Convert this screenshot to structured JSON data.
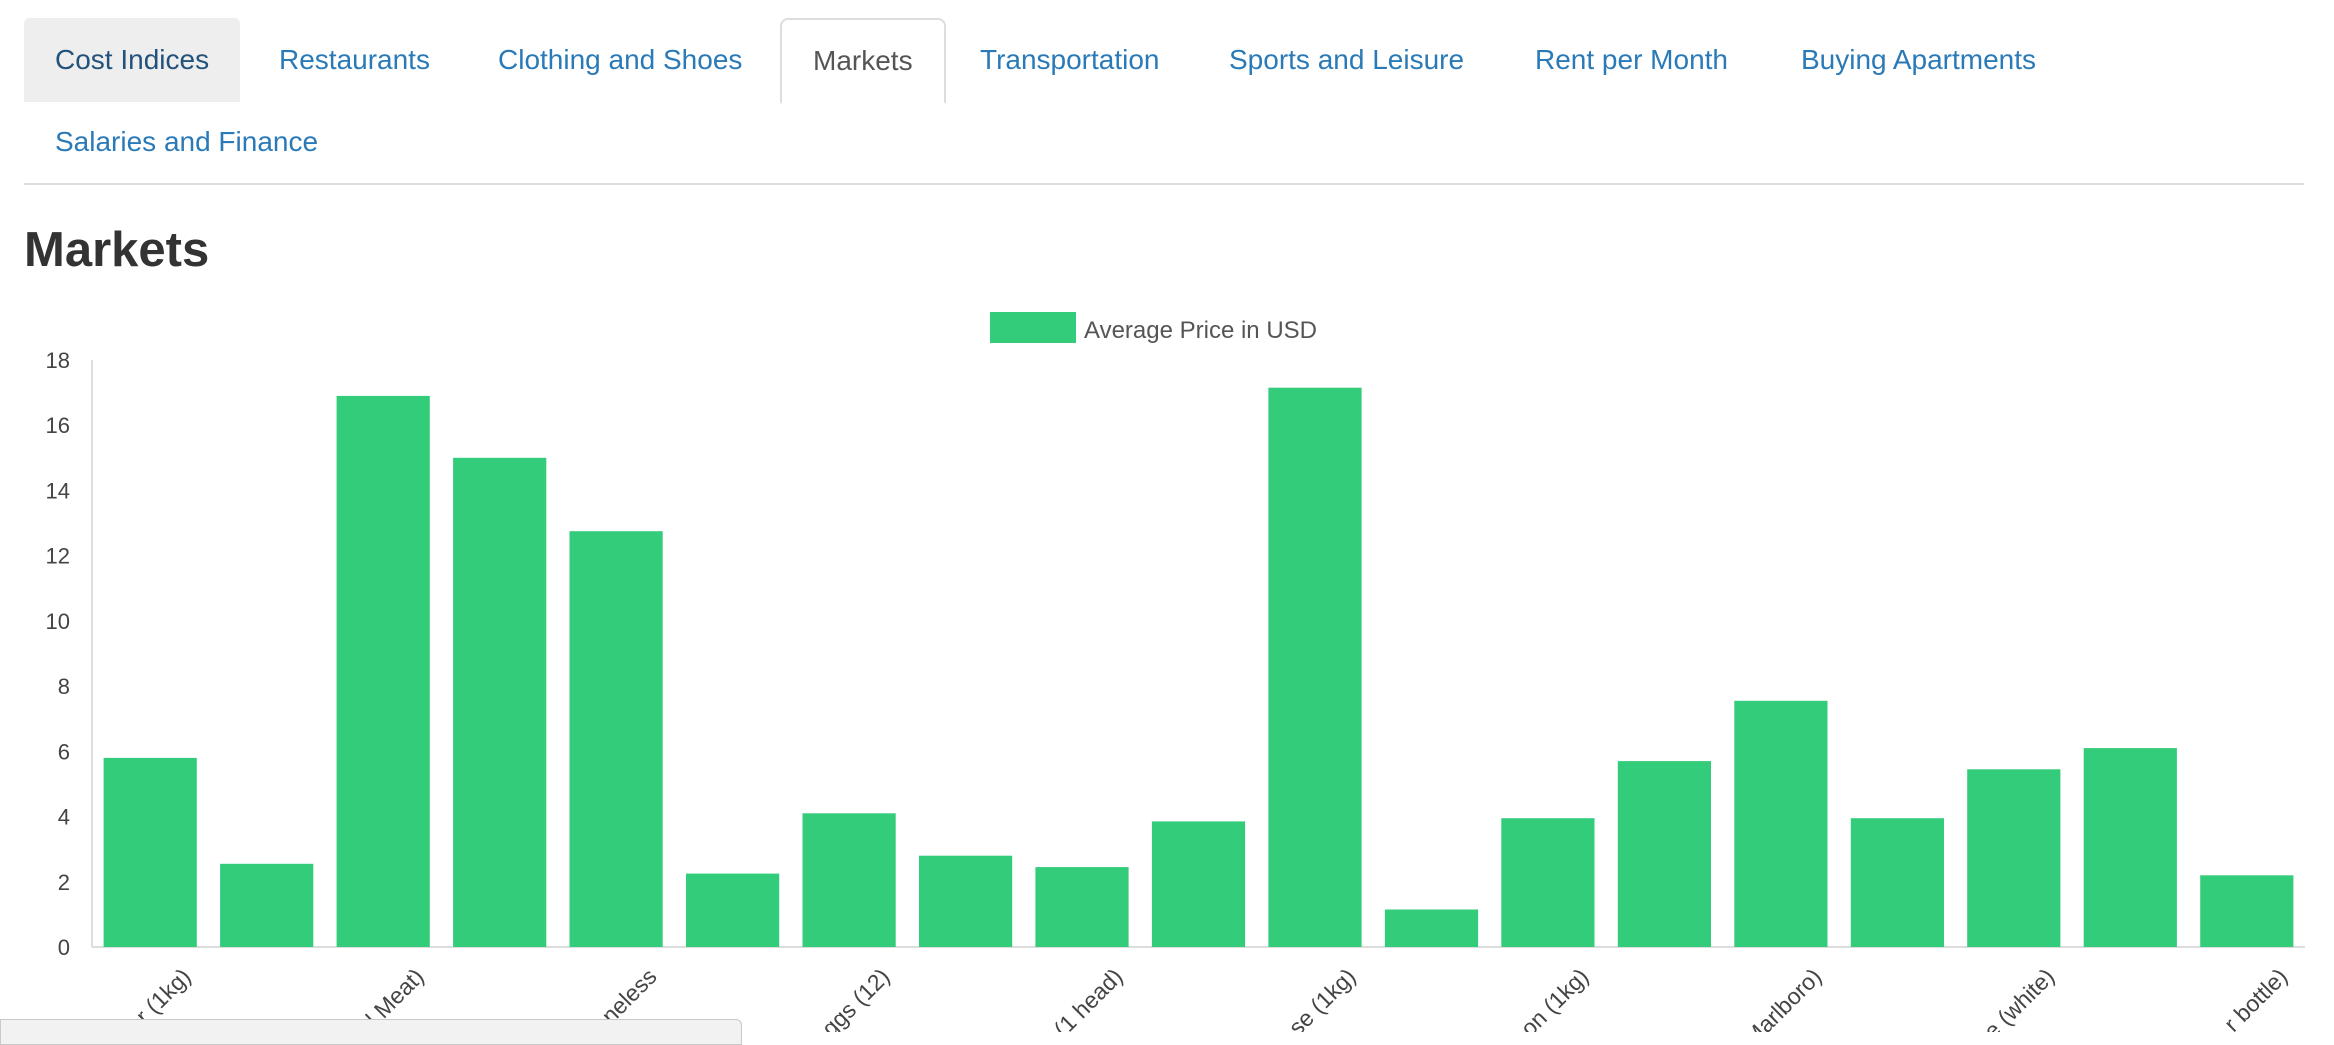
{
  "tabs": [
    {
      "label": "Cost Indices",
      "state": "first"
    },
    {
      "label": "Restaurants",
      "state": "link"
    },
    {
      "label": "Clothing and Shoes",
      "state": "link"
    },
    {
      "label": "Markets",
      "state": "active"
    },
    {
      "label": "Transportation",
      "state": "link"
    },
    {
      "label": "Sports and Leisure",
      "state": "link"
    },
    {
      "label": "Rent per Month",
      "state": "link"
    },
    {
      "label": "Buying Apartments",
      "state": "link"
    },
    {
      "label": "Salaries and Finance",
      "state": "link"
    }
  ],
  "page_title": "Markets",
  "colors": {
    "bar": "#33cc7a",
    "tab_link": "#2a7ab8",
    "axis": "#dddddd",
    "tick_text": "#444444"
  },
  "chart_data": {
    "type": "bar",
    "legend": "Average Price in USD",
    "legend_position": "top",
    "ylim": [
      0,
      18
    ],
    "yticks": [
      0,
      2,
      4,
      6,
      8,
      10,
      12,
      14,
      16,
      18
    ],
    "grid": false,
    "categories": [
      "r (1kg)",
      "",
      "l Meat)",
      "",
      "neless",
      "",
      "ggs (12)",
      "",
      "(1 head)",
      "",
      "se (1kg)",
      "",
      "on (1kg)",
      "",
      "Marlboro)",
      "",
      "e (white)",
      "",
      "r bottle)"
    ],
    "values": [
      5.8,
      2.55,
      16.9,
      15.0,
      12.75,
      2.25,
      4.1,
      2.8,
      2.45,
      3.85,
      17.15,
      1.15,
      3.95,
      5.7,
      7.55,
      3.95,
      5.45,
      6.1,
      2.2
    ]
  }
}
